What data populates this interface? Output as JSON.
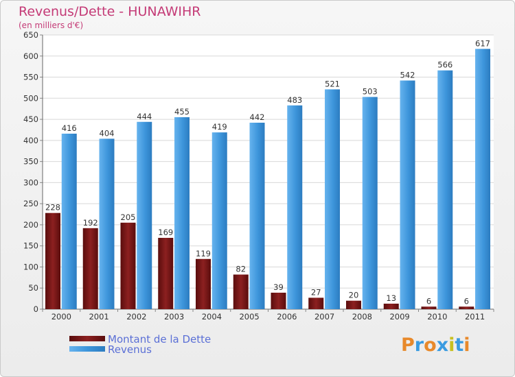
{
  "chart_data": {
    "type": "bar",
    "title": "Revenus/Dette - HUNAWIHR",
    "subtitle": "(en milliers d'€)",
    "categories": [
      "2000",
      "2001",
      "2002",
      "2003",
      "2004",
      "2005",
      "2006",
      "2007",
      "2008",
      "2009",
      "2010",
      "2011"
    ],
    "series": [
      {
        "name": "Montant de la Dette",
        "color": "#7a1717",
        "values": [
          228,
          192,
          205,
          169,
          119,
          82,
          39,
          27,
          20,
          13,
          6,
          6
        ]
      },
      {
        "name": "Revenus",
        "color": "#3d95db",
        "values": [
          416,
          404,
          444,
          455,
          419,
          442,
          483,
          521,
          503,
          542,
          566,
          617
        ]
      }
    ],
    "ylim": [
      0,
      650
    ],
    "yticks": [
      0,
      50,
      100,
      150,
      200,
      250,
      300,
      350,
      400,
      450,
      500,
      550,
      600,
      650
    ],
    "grid": true,
    "legend_position": "bottom-left"
  },
  "logo": {
    "text": "Proxiti",
    "colors": [
      "#e8892a",
      "#3a9be0",
      "#e8892a",
      "#3a9be0",
      "#c8c020",
      "#3a9be0",
      "#e8892a"
    ]
  }
}
